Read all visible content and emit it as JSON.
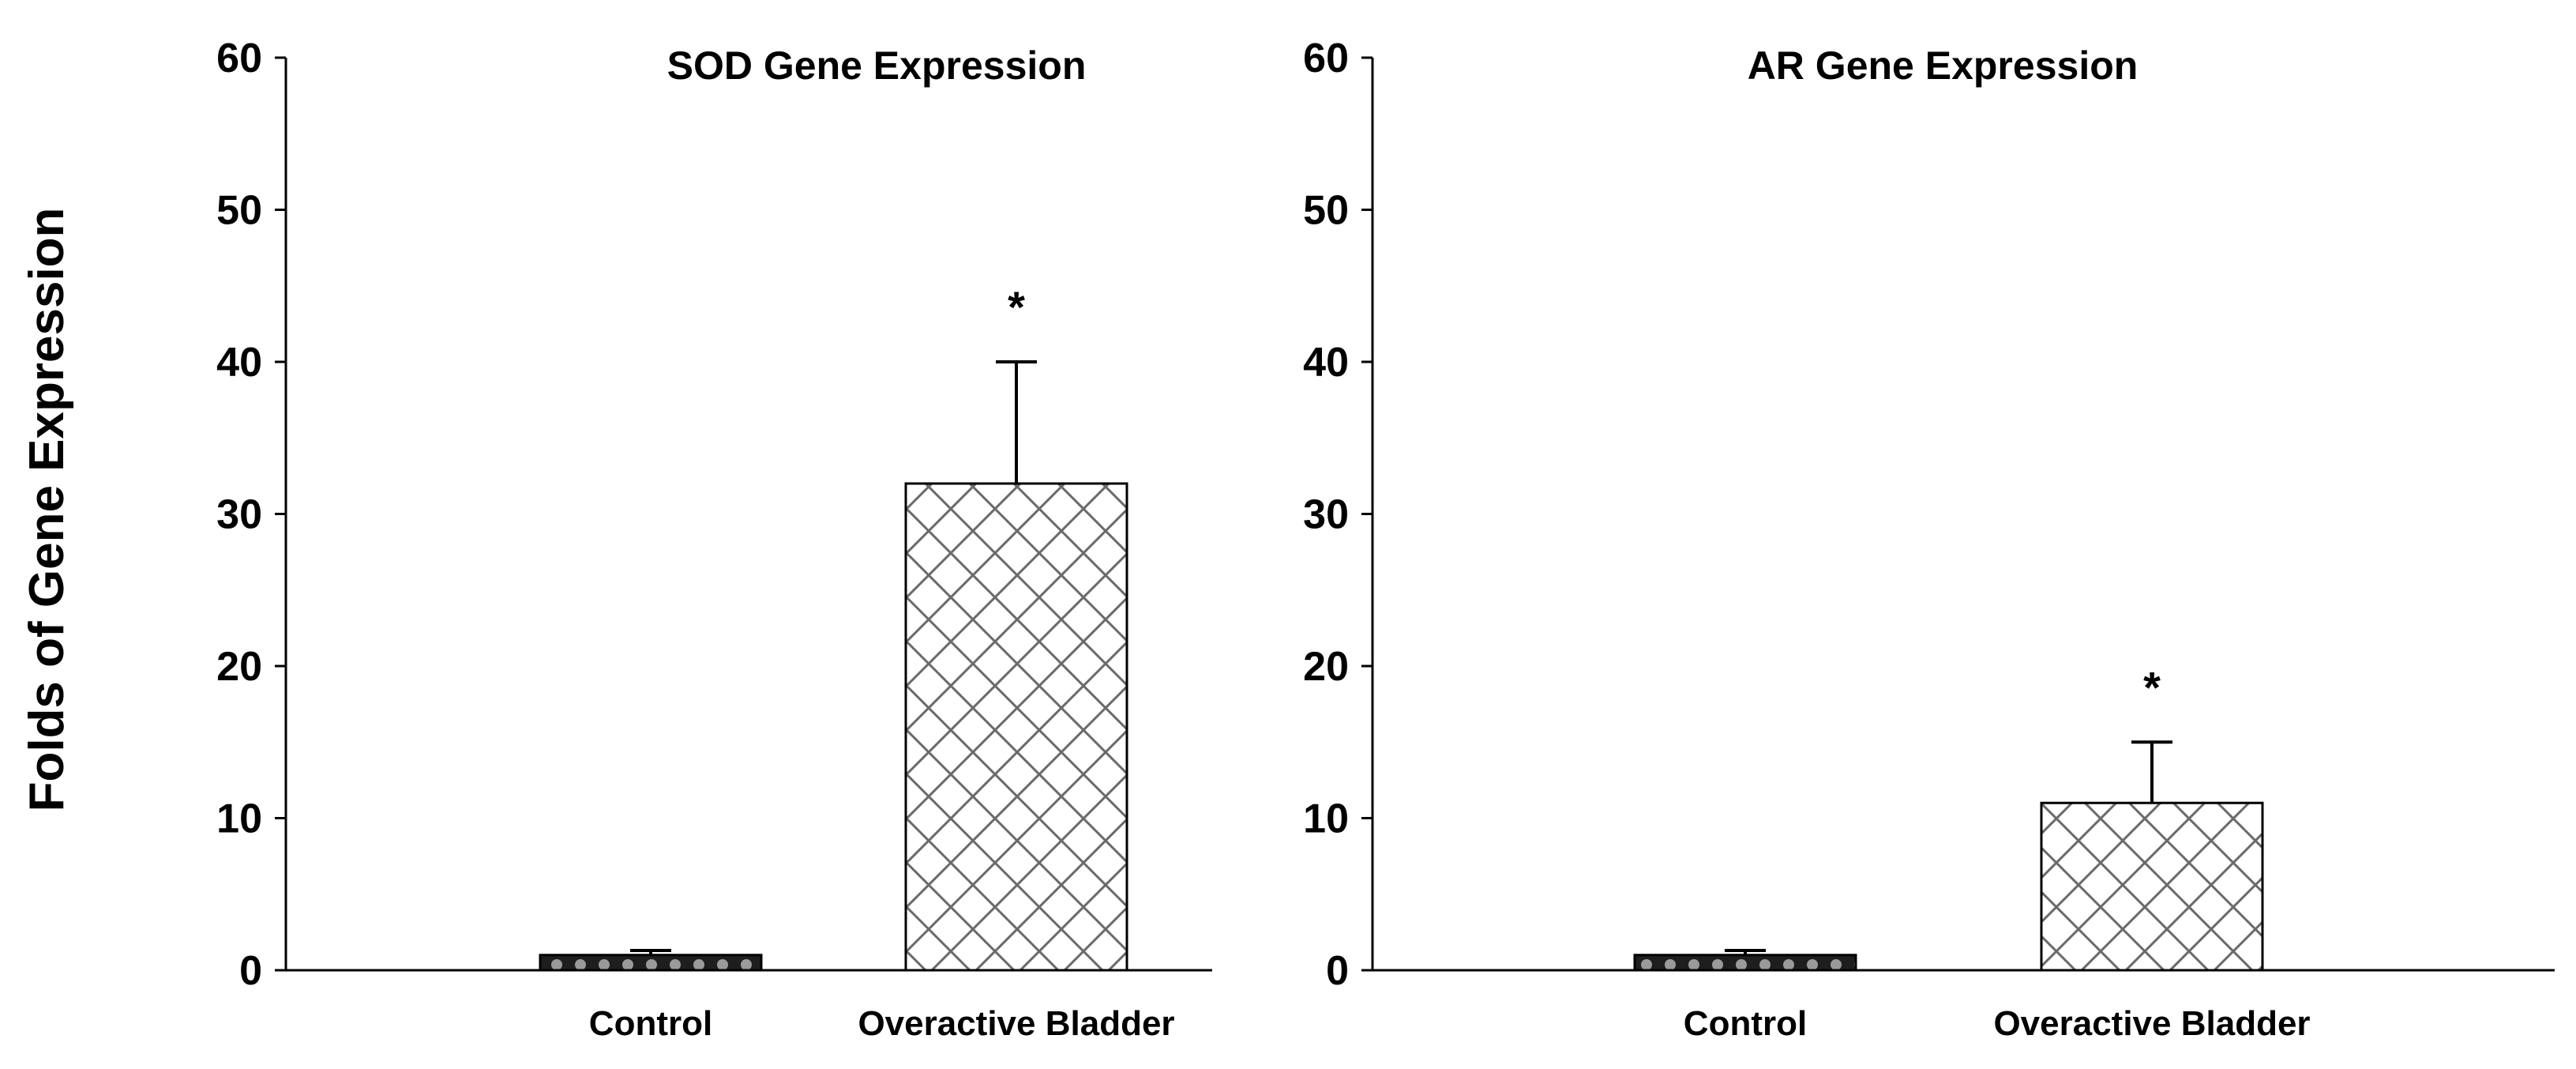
{
  "figure": {
    "shared_ylabel": "Folds of Gene Expression"
  },
  "chart_data": [
    {
      "type": "bar",
      "title": "SOD Gene Expression",
      "xlabel": "",
      "ylabel": "Folds of Gene Expression",
      "ylim": [
        0,
        60
      ],
      "yticks": [
        0,
        10,
        20,
        30,
        40,
        50,
        60
      ],
      "grid": false,
      "categories": [
        "Control",
        "Overactive Bladder"
      ],
      "values": [
        1,
        32
      ],
      "error": [
        0.3,
        8
      ],
      "significance": [
        "",
        "*"
      ],
      "patterns": [
        "dark-dotted",
        "crosshatch"
      ]
    },
    {
      "type": "bar",
      "title": "AR Gene Expression",
      "xlabel": "",
      "ylabel": "",
      "ylim": [
        0,
        60
      ],
      "yticks": [
        0,
        10,
        20,
        30,
        40,
        50,
        60
      ],
      "grid": false,
      "categories": [
        "Control",
        "Overactive Bladder"
      ],
      "values": [
        1,
        11
      ],
      "error": [
        0.3,
        4
      ],
      "significance": [
        "",
        "*"
      ],
      "patterns": [
        "dark-dotted",
        "crosshatch"
      ]
    }
  ]
}
